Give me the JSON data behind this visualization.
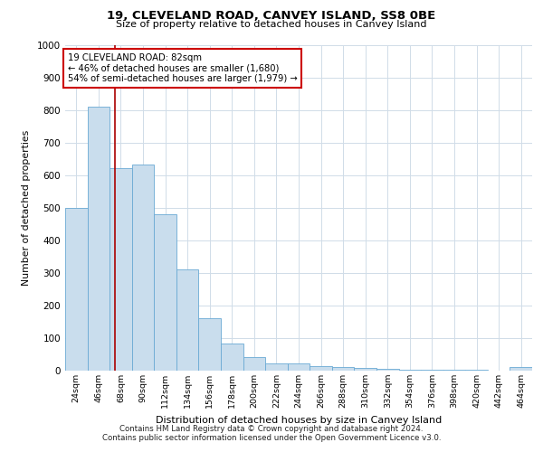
{
  "title": "19, CLEVELAND ROAD, CANVEY ISLAND, SS8 0BE",
  "subtitle": "Size of property relative to detached houses in Canvey Island",
  "xlabel": "Distribution of detached houses by size in Canvey Island",
  "ylabel": "Number of detached properties",
  "footer_line1": "Contains HM Land Registry data © Crown copyright and database right 2024.",
  "footer_line2": "Contains public sector information licensed under the Open Government Licence v3.0.",
  "categories": [
    "24sqm",
    "46sqm",
    "68sqm",
    "90sqm",
    "112sqm",
    "134sqm",
    "156sqm",
    "178sqm",
    "200sqm",
    "222sqm",
    "244sqm",
    "266sqm",
    "288sqm",
    "310sqm",
    "332sqm",
    "354sqm",
    "376sqm",
    "398sqm",
    "420sqm",
    "442sqm",
    "464sqm"
  ],
  "values": [
    500,
    810,
    622,
    632,
    480,
    310,
    160,
    82,
    42,
    22,
    22,
    15,
    10,
    8,
    5,
    4,
    4,
    4,
    4,
    0,
    10
  ],
  "bar_color": "#c9dded",
  "bar_edge_color": "#6aaad4",
  "grid_color": "#d0dce8",
  "annotation_text": "19 CLEVELAND ROAD: 82sqm\n← 46% of detached houses are smaller (1,680)\n54% of semi-detached houses are larger (1,979) →",
  "vline_position": 1.75,
  "vline_color": "#aa0000",
  "annotation_box_color": "#ffffff",
  "annotation_box_edge": "#cc0000",
  "ylim": [
    0,
    1000
  ],
  "yticks": [
    0,
    100,
    200,
    300,
    400,
    500,
    600,
    700,
    800,
    900,
    1000
  ]
}
